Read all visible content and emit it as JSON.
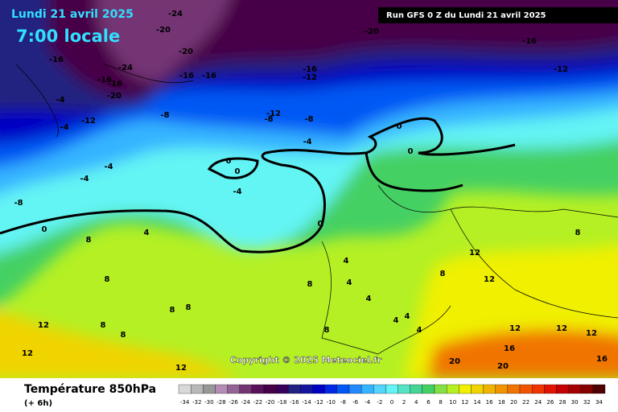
{
  "header": {
    "date": "Lundi 21 avril 2025",
    "time": "7:00 locale",
    "run": "Run GFS 0 Z du Lundi 21 avril 2025"
  },
  "footer": {
    "title": "Température 850hPa",
    "offset": "(+ 6h)",
    "copyright": "Copyright © 2025 Meteociel.fr"
  },
  "legend": {
    "ticks": [
      -34,
      -32,
      -30,
      -28,
      -26,
      -24,
      -22,
      -20,
      -18,
      -16,
      -14,
      -12,
      -10,
      -8,
      -6,
      -4,
      -2,
      0,
      2,
      4,
      6,
      8,
      10,
      12,
      14,
      16,
      18,
      20,
      22,
      24,
      26,
      28,
      30,
      32,
      34
    ],
    "colors": [
      "#d8d8d8",
      "#b8b8b8",
      "#989898",
      "#b48cb4",
      "#946494",
      "#743474",
      "#581058",
      "#460046",
      "#36005a",
      "#222080",
      "#1414a0",
      "#0000c4",
      "#0028e4",
      "#0058f4",
      "#2488ff",
      "#34b4ff",
      "#54d4ff",
      "#64f4f4",
      "#54e4c4",
      "#44d494",
      "#44d064",
      "#84e044",
      "#b4f024",
      "#f0f000",
      "#f0d400",
      "#f0b400",
      "#f09400",
      "#f07400",
      "#f05400",
      "#f03400",
      "#e01400",
      "#c40000",
      "#a40000",
      "#840000",
      "#500000"
    ]
  },
  "contour_labels": [
    -24,
    -20,
    -20,
    -16,
    -20,
    -16,
    -24,
    -16,
    -16,
    -20,
    -16,
    -16,
    -16,
    -12,
    -12,
    -4,
    -12,
    -8,
    -12,
    -8,
    -8,
    -4,
    -4,
    0,
    0,
    -4,
    -4,
    0,
    0,
    -4,
    -8,
    0,
    4,
    8,
    0,
    8,
    8,
    8,
    8,
    8,
    12,
    12,
    12,
    4,
    4,
    8,
    4,
    4,
    4,
    8,
    8,
    4,
    12,
    12,
    8,
    12,
    12,
    16,
    12,
    16,
    20,
    20
  ]
}
